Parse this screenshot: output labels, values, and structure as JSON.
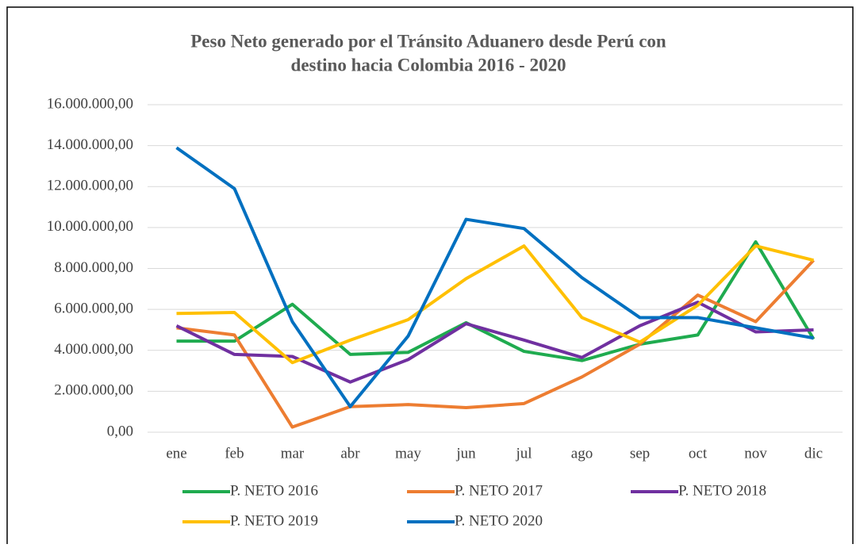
{
  "chart_data": {
    "type": "line",
    "title": [
      "Peso Neto generado por el Tránsito Aduanero desde Perú con",
      "destino hacia Colombia 2016 - 2020"
    ],
    "categories": [
      "ene",
      "feb",
      "mar",
      "abr",
      "may",
      "jun",
      "jul",
      "ago",
      "sep",
      "oct",
      "nov",
      "dic"
    ],
    "series": [
      {
        "name": "P. NETO 2016",
        "color": "#1fab4f",
        "values": [
          4450000,
          4450000,
          6250000,
          3800000,
          3900000,
          5350000,
          3950000,
          3500000,
          4300000,
          4750000,
          9300000,
          4550000
        ]
      },
      {
        "name": "P. NETO 2017",
        "color": "#ed7d31",
        "values": [
          5100000,
          4750000,
          250000,
          1250000,
          1350000,
          1200000,
          1400000,
          2700000,
          4300000,
          6700000,
          5400000,
          8400000
        ]
      },
      {
        "name": "P. NETO 2018",
        "color": "#7030a0",
        "values": [
          5200000,
          3800000,
          3700000,
          2450000,
          3550000,
          5300000,
          4500000,
          3650000,
          5200000,
          6350000,
          4900000,
          5000000
        ]
      },
      {
        "name": "P. NETO 2019",
        "color": "#ffc000",
        "values": [
          5800000,
          5850000,
          3400000,
          4500000,
          5500000,
          7500000,
          9100000,
          5600000,
          4400000,
          6200000,
          9100000,
          8400000
        ]
      },
      {
        "name": "P. NETO 2020",
        "color": "#0070c0",
        "values": [
          13900000,
          11900000,
          5400000,
          1250000,
          4700000,
          10400000,
          9950000,
          7550000,
          5600000,
          5600000,
          5100000,
          4600000
        ]
      }
    ],
    "ylim": [
      0,
      16000000
    ],
    "yticks": [
      {
        "value": 0,
        "label": "0,00"
      },
      {
        "value": 2000000,
        "label": "2.000.000,00"
      },
      {
        "value": 4000000,
        "label": "4.000.000,00"
      },
      {
        "value": 6000000,
        "label": "6.000.000,00"
      },
      {
        "value": 8000000,
        "label": "8.000.000,00"
      },
      {
        "value": 10000000,
        "label": "10.000.000,00"
      },
      {
        "value": 12000000,
        "label": "12.000.000,00"
      },
      {
        "value": 14000000,
        "label": "14.000.000,00"
      },
      {
        "value": 16000000,
        "label": "16.000.000,00"
      }
    ],
    "grid": true,
    "legend": "bottom"
  }
}
